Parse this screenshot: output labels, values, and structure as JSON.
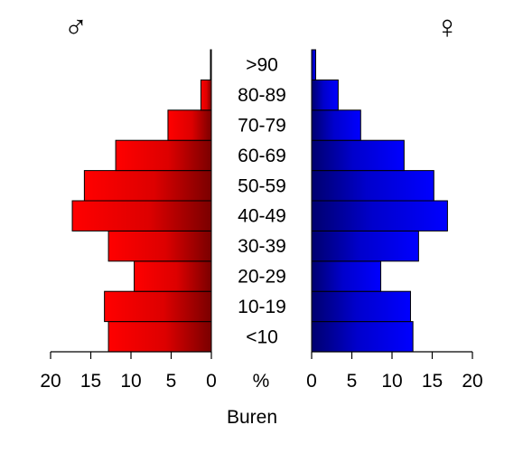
{
  "chart_data": {
    "type": "bar",
    "orientation": "horizontal",
    "layout": "population-pyramid",
    "categories": [
      "<10",
      "10-19",
      "20-29",
      "30-39",
      "40-49",
      "50-59",
      "60-69",
      "70-79",
      "80-89",
      ">90"
    ],
    "series": [
      {
        "symbol": "♂",
        "side": "left",
        "color": "#e60000",
        "values": [
          12.8,
          13.3,
          9.6,
          12.8,
          17.3,
          15.8,
          11.9,
          5.4,
          1.3,
          0.1
        ]
      },
      {
        "symbol": "♀",
        "side": "right",
        "color": "#0000dd",
        "values": [
          12.6,
          12.3,
          8.6,
          13.3,
          16.9,
          15.2,
          11.5,
          6.1,
          3.3,
          0.5
        ]
      }
    ],
    "xlim": [
      0,
      20
    ],
    "ticks": [
      "0",
      "5",
      "10",
      "15",
      "20"
    ],
    "center_axis_label": "%",
    "xlabel": "Buren",
    "grid": false
  }
}
